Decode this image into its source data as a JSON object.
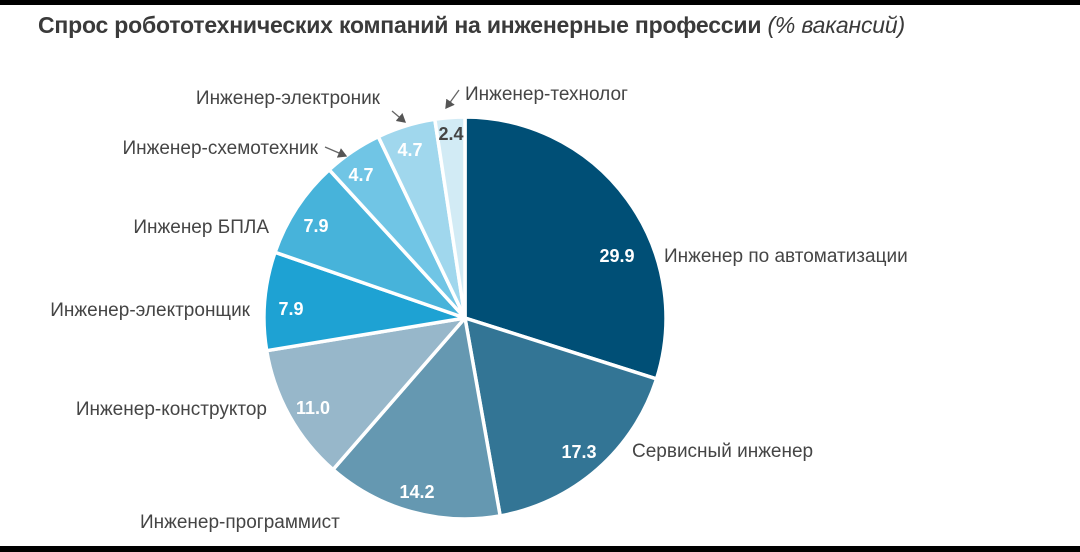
{
  "chart_data": {
    "type": "pie",
    "title": "Спрос робототехнических компаний на инженерные профессии",
    "unit": "(% вакансий)",
    "start": "top",
    "direction": "clockwise",
    "slices": [
      {
        "label": "Инженер по автоматизации",
        "value": 29.9,
        "display": "29.9",
        "color": "#004f76",
        "text_color": "#ffffff"
      },
      {
        "label": "Сервисный инженер",
        "value": 17.3,
        "display": "17.3",
        "color": "#337595",
        "text_color": "#ffffff"
      },
      {
        "label": "Инженер-программист",
        "value": 14.2,
        "display": "14.2",
        "color": "#6598b1",
        "text_color": "#ffffff"
      },
      {
        "label": "Инженер-конструктор",
        "value": 11.0,
        "display": "11.0",
        "color": "#97b7ca",
        "text_color": "#ffffff"
      },
      {
        "label": "Инженер-электронщик",
        "value": 7.9,
        "display": "7.9",
        "color": "#1ea2d3",
        "text_color": "#ffffff"
      },
      {
        "label": "Инженер БПЛА",
        "value": 7.9,
        "display": "7.9",
        "color": "#47b3da",
        "text_color": "#ffffff"
      },
      {
        "label": "Инженер-схемотехник",
        "value": 4.7,
        "display": "4.7",
        "color": "#70c5e5",
        "text_color": "#ffffff"
      },
      {
        "label": "Инженер-электроник",
        "value": 4.7,
        "display": "4.7",
        "color": "#a0d7ed",
        "text_color": "#ffffff"
      },
      {
        "label": "Инженер-технолог",
        "value": 2.4,
        "display": "2.4",
        "color": "#d2ebf5",
        "text_color": "#444444"
      }
    ]
  }
}
